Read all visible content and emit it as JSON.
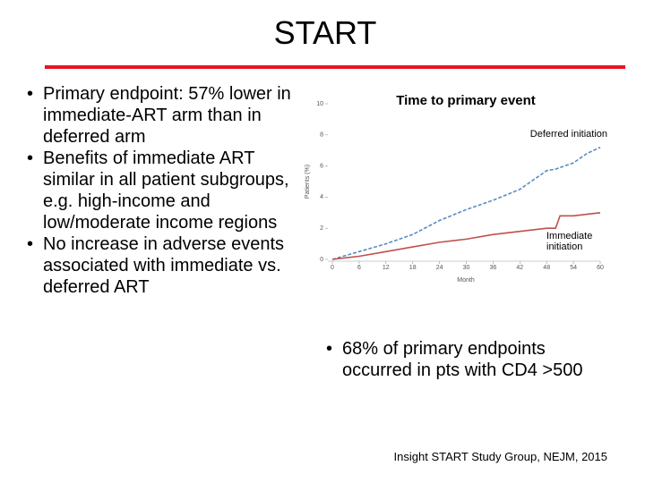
{
  "title": "START",
  "bullets": [
    "Primary endpoint: 57% lower in immediate-ART arm than in deferred arm",
    "Benefits of immediate ART similar in all patient subgroups, e.g. high-income and low/moderate income regions",
    "No increase in adverse events associated with immediate vs. deferred ART"
  ],
  "right_bullets": [
    "68% of primary endpoints occurred in pts with CD4 >500"
  ],
  "citation": "Insight START Study Group, NEJM, 2015",
  "chart_data": {
    "type": "line",
    "title": "Time to primary event",
    "x_label": "Month",
    "y_label": "Patients (%)",
    "x": [
      0,
      6,
      12,
      18,
      24,
      30,
      36,
      42,
      48,
      50,
      51,
      54,
      57,
      60
    ],
    "series": [
      {
        "name": "Deferred initiation",
        "color": "#5b8ac6",
        "dashed": true,
        "values": [
          0,
          0.5,
          1.0,
          1.6,
          2.5,
          3.2,
          3.8,
          4.5,
          5.7,
          5.8,
          5.9,
          6.2,
          6.8,
          7.2
        ]
      },
      {
        "name": "Immediate initiation",
        "color": "#c0504d",
        "dashed": false,
        "values": [
          0,
          0.2,
          0.5,
          0.8,
          1.1,
          1.3,
          1.6,
          1.8,
          2.0,
          2.0,
          2.8,
          2.8,
          2.9,
          3.0
        ]
      }
    ],
    "xlim": [
      0,
      60
    ],
    "xticks": [
      0,
      6,
      12,
      18,
      24,
      30,
      36,
      42,
      48,
      54,
      60
    ],
    "ylim": [
      0,
      10
    ],
    "yticks": [
      0,
      2,
      4,
      6,
      8,
      10
    ],
    "grid": false
  }
}
